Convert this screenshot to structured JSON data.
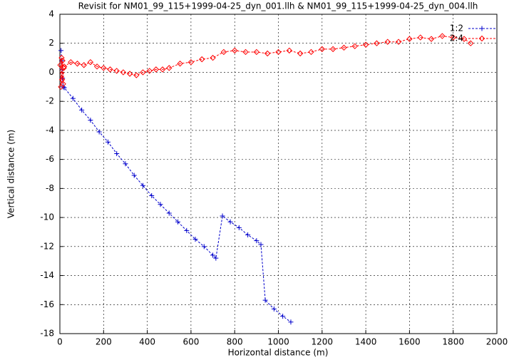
{
  "chart_data": {
    "type": "line",
    "title": "Revisit for NM01_99_115+1999-04-25_dyn_001.llh & NM01_99_115+1999-04-25_dyn_004.llh",
    "x_label": "Horizontal distance (m)",
    "y_label": "Vertical distance (m)",
    "xlim": [
      0,
      2000
    ],
    "xticks": [
      0,
      200,
      400,
      600,
      800,
      1000,
      1200,
      1400,
      1600,
      1800,
      2000
    ],
    "ylim": [
      -18,
      4
    ],
    "yticks": [
      -18,
      -16,
      -14,
      -12,
      -10,
      -8,
      -6,
      -4,
      -2,
      0,
      2,
      4
    ],
    "grid": true,
    "legend": "top-right",
    "series": [
      {
        "name": "1:2",
        "color": "#0000cc",
        "marker": "plus",
        "x": [
          5,
          8,
          10,
          12,
          15,
          20,
          60,
          100,
          140,
          180,
          220,
          260,
          300,
          340,
          380,
          420,
          460,
          500,
          540,
          580,
          620,
          660,
          700,
          714,
          744,
          780,
          820,
          860,
          900,
          920,
          940,
          980,
          1020,
          1057
        ],
        "values": [
          1.5,
          0.8,
          0.2,
          -0.4,
          -1.0,
          -1.06,
          -1.8,
          -2.6,
          -3.3,
          -4.1,
          -4.8,
          -5.6,
          -6.3,
          -7.1,
          -7.8,
          -8.5,
          -9.1,
          -9.7,
          -10.3,
          -10.9,
          -11.5,
          -12.0,
          -12.6,
          -12.8,
          -9.9,
          -10.3,
          -10.7,
          -11.2,
          -11.6,
          -11.86,
          -15.7,
          -16.3,
          -16.8,
          -17.2
        ]
      },
      {
        "name": "2:4",
        "color": "#ff0000",
        "marker": "diamond",
        "x": [
          2,
          5,
          8,
          10,
          12,
          15,
          18,
          20,
          50,
          80,
          110,
          140,
          170,
          200,
          230,
          260,
          290,
          320,
          350,
          380,
          410,
          440,
          470,
          500,
          550,
          600,
          650,
          700,
          750,
          800,
          850,
          900,
          950,
          1000,
          1050,
          1100,
          1150,
          1200,
          1250,
          1300,
          1350,
          1400,
          1450,
          1500,
          1550,
          1600,
          1650,
          1700,
          1750,
          1800,
          1850,
          1880
        ],
        "values": [
          0.5,
          -1.0,
          1.0,
          -0.5,
          0.8,
          -0.8,
          0.3,
          0.4,
          0.7,
          0.6,
          0.5,
          0.7,
          0.4,
          0.3,
          0.2,
          0.1,
          0.0,
          -0.1,
          -0.2,
          0.0,
          0.1,
          0.2,
          0.2,
          0.3,
          0.6,
          0.7,
          0.9,
          1.0,
          1.4,
          1.5,
          1.4,
          1.4,
          1.3,
          1.4,
          1.5,
          1.3,
          1.4,
          1.6,
          1.6,
          1.7,
          1.8,
          1.9,
          2.0,
          2.1,
          2.1,
          2.3,
          2.4,
          2.3,
          2.5,
          2.4,
          2.3,
          2.0
        ]
      }
    ]
  }
}
